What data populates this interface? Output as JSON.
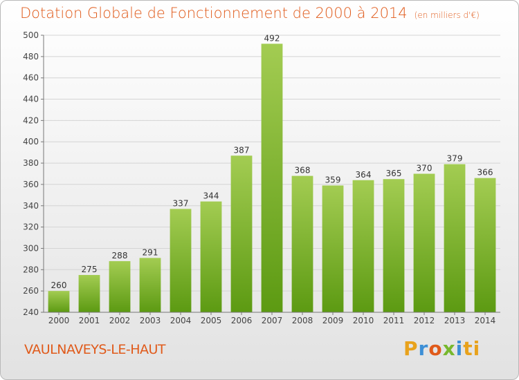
{
  "title": "Dotation Globale de Fonctionnement de 2000 à 2014",
  "subtitle": "(en milliers d'€)",
  "place": "VAULNAVEYS-LE-HAUT",
  "brand": [
    "P",
    "r",
    "o",
    "x",
    "i",
    "ti"
  ],
  "colors": {
    "title": "#e05a1a",
    "bar_top": "#a3cc52",
    "bar_bottom": "#5c9a12",
    "grid": "#d4d4d4"
  },
  "chart_data": {
    "type": "bar",
    "title": "Dotation Globale de Fonctionnement de 2000 à 2014",
    "subtitle": "(en milliers d'€)",
    "xlabel": "",
    "ylabel": "",
    "categories": [
      "2000",
      "2001",
      "2002",
      "2003",
      "2004",
      "2005",
      "2006",
      "2007",
      "2008",
      "2009",
      "2010",
      "2011",
      "2012",
      "2013",
      "2014"
    ],
    "values": [
      260,
      275,
      288,
      291,
      337,
      344,
      387,
      492,
      368,
      359,
      364,
      365,
      370,
      379,
      366
    ],
    "ylim": [
      240,
      500
    ],
    "yticks": [
      240,
      260,
      280,
      300,
      320,
      340,
      360,
      380,
      400,
      420,
      440,
      460,
      480,
      500
    ],
    "grid": true,
    "legend": "none"
  }
}
